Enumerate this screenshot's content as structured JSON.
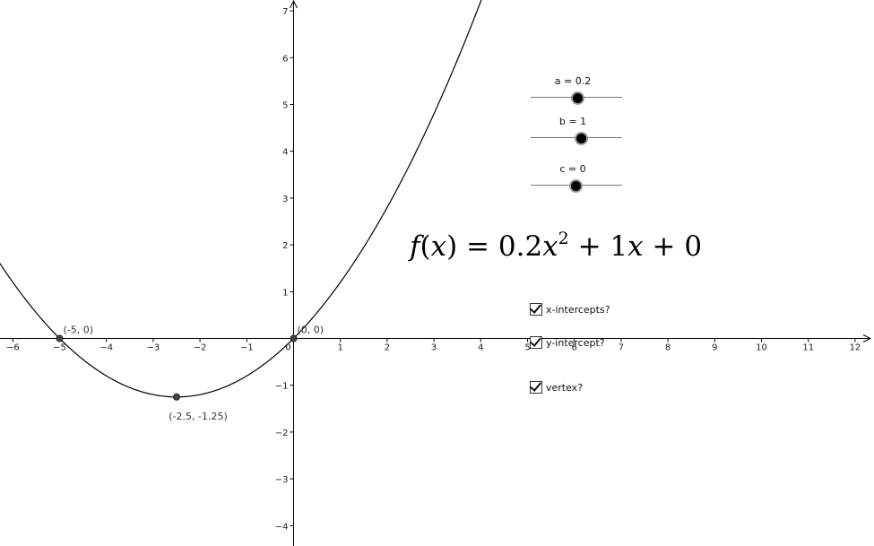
{
  "graph": {
    "x_range": [
      -6.3,
      12.4
    ],
    "y_range": [
      -4.3,
      7.3
    ],
    "x_ticks": [
      -6,
      -5,
      -4,
      -3,
      -2,
      -1,
      0,
      1,
      2,
      3,
      4,
      5,
      6,
      7,
      8,
      9,
      10,
      11,
      12
    ],
    "y_ticks": [
      -4,
      -3,
      -2,
      -1,
      1,
      2,
      3,
      4,
      5,
      6,
      7
    ],
    "x_tick_labels": [
      "−6",
      "−5",
      "−4",
      "−3",
      "−2",
      "−1",
      "0",
      "1",
      "2",
      "3",
      "4",
      "5",
      "6",
      "7",
      "8",
      "9",
      "10",
      "11",
      "12"
    ],
    "y_tick_labels": [
      "−4",
      "−3",
      "−2",
      "−1",
      "1",
      "2",
      "3",
      "4",
      "5",
      "6",
      "7"
    ],
    "function": {
      "a": 0.2,
      "b": 1,
      "c": 0
    },
    "points": [
      {
        "name": "x-intercept-left",
        "x": -5,
        "y": 0,
        "label": "(-5, 0)"
      },
      {
        "name": "origin-intercept",
        "x": 0,
        "y": 0,
        "label": "(0, 0)"
      },
      {
        "name": "vertex",
        "x": -2.5,
        "y": -1.25,
        "label": "(-2.5, -1.25)"
      }
    ]
  },
  "formula": {
    "lhs_f": "f",
    "lhs_paren_open": "(",
    "lhs_x": "x",
    "lhs_paren_close": ")",
    "eq": " = 0.2",
    "x1": "x",
    "exp": "2",
    "plus1": " + 1",
    "x2": "x",
    "plus2": " + 0"
  },
  "sliders": [
    {
      "name": "slider-a",
      "label": "a = 0.2",
      "value": 0.2,
      "min": -5,
      "max": 5
    },
    {
      "name": "slider-b",
      "label": "b = 1",
      "value": 1,
      "min": -5,
      "max": 5
    },
    {
      "name": "slider-c",
      "label": "c = 0",
      "value": 0,
      "min": -5,
      "max": 5
    }
  ],
  "checkboxes": [
    {
      "name": "x-intercepts-checkbox",
      "label": "x-intercepts?",
      "checked": true
    },
    {
      "name": "y-intercept-checkbox",
      "label": "y-intercept?",
      "checked": true
    },
    {
      "name": "vertex-checkbox",
      "label": "vertex?",
      "checked": true
    }
  ]
}
